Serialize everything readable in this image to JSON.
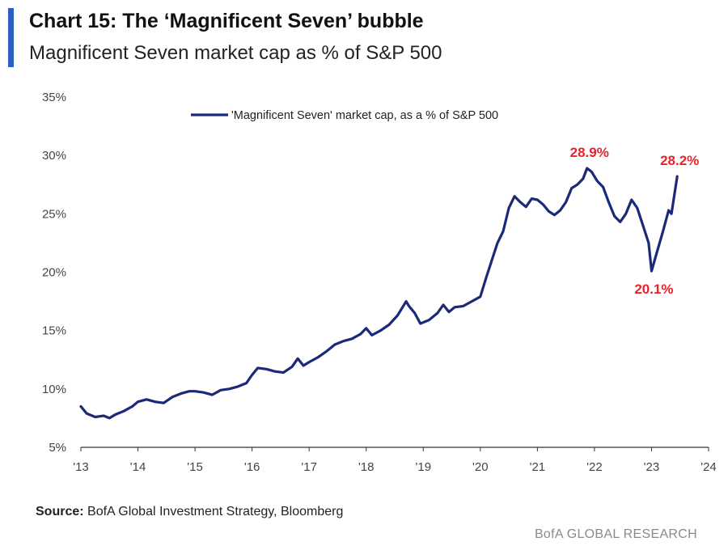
{
  "header": {
    "title": "Chart 15: The ‘Magnificent Seven’ bubble",
    "subtitle": "Magnificent Seven market cap as % of S&P 500",
    "accent_color": "#2d5fc2"
  },
  "footer": {
    "source_label": "Source:",
    "source_text": "BofA Global Investment Strategy, Bloomberg",
    "brand": "BofA GLOBAL RESEARCH"
  },
  "chart_data": {
    "type": "line",
    "x_range": [
      2013.0,
      2024.0
    ],
    "ylim": [
      5,
      35
    ],
    "y_ticks": [
      "5%",
      "10%",
      "15%",
      "20%",
      "25%",
      "30%",
      "35%"
    ],
    "x_ticks": [
      "'13",
      "'14",
      "'15",
      "'16",
      "'17",
      "'18",
      "'19",
      "'20",
      "'21",
      "'22",
      "'23",
      "'24"
    ],
    "grid": false,
    "legend_position": "top-center",
    "series": [
      {
        "name": "'Magnificent Seven' market cap, as a % of S&P 500",
        "color": "#1b2a78",
        "points": [
          [
            2013.0,
            8.5
          ],
          [
            2013.1,
            7.9
          ],
          [
            2013.25,
            7.6
          ],
          [
            2013.4,
            7.7
          ],
          [
            2013.5,
            7.5
          ],
          [
            2013.6,
            7.8
          ],
          [
            2013.75,
            8.1
          ],
          [
            2013.9,
            8.5
          ],
          [
            2014.0,
            8.9
          ],
          [
            2014.15,
            9.1
          ],
          [
            2014.3,
            8.9
          ],
          [
            2014.45,
            8.8
          ],
          [
            2014.6,
            9.3
          ],
          [
            2014.75,
            9.6
          ],
          [
            2014.9,
            9.8
          ],
          [
            2015.0,
            9.8
          ],
          [
            2015.15,
            9.7
          ],
          [
            2015.3,
            9.5
          ],
          [
            2015.45,
            9.9
          ],
          [
            2015.6,
            10.0
          ],
          [
            2015.75,
            10.2
          ],
          [
            2015.9,
            10.5
          ],
          [
            2016.0,
            11.2
          ],
          [
            2016.1,
            11.8
          ],
          [
            2016.25,
            11.7
          ],
          [
            2016.4,
            11.5
          ],
          [
            2016.55,
            11.4
          ],
          [
            2016.7,
            11.9
          ],
          [
            2016.8,
            12.6
          ],
          [
            2016.9,
            12.0
          ],
          [
            2017.0,
            12.3
          ],
          [
            2017.15,
            12.7
          ],
          [
            2017.3,
            13.2
          ],
          [
            2017.45,
            13.8
          ],
          [
            2017.6,
            14.1
          ],
          [
            2017.75,
            14.3
          ],
          [
            2017.9,
            14.7
          ],
          [
            2018.0,
            15.2
          ],
          [
            2018.1,
            14.6
          ],
          [
            2018.25,
            15.0
          ],
          [
            2018.4,
            15.5
          ],
          [
            2018.55,
            16.3
          ],
          [
            2018.7,
            17.5
          ],
          [
            2018.75,
            17.1
          ],
          [
            2018.85,
            16.5
          ],
          [
            2018.95,
            15.6
          ],
          [
            2019.1,
            15.9
          ],
          [
            2019.25,
            16.5
          ],
          [
            2019.35,
            17.2
          ],
          [
            2019.45,
            16.6
          ],
          [
            2019.55,
            17.0
          ],
          [
            2019.7,
            17.1
          ],
          [
            2019.85,
            17.5
          ],
          [
            2020.0,
            17.9
          ],
          [
            2020.1,
            19.5
          ],
          [
            2020.2,
            21.0
          ],
          [
            2020.3,
            22.5
          ],
          [
            2020.4,
            23.5
          ],
          [
            2020.5,
            25.5
          ],
          [
            2020.6,
            26.5
          ],
          [
            2020.7,
            26.0
          ],
          [
            2020.8,
            25.6
          ],
          [
            2020.9,
            26.3
          ],
          [
            2021.0,
            26.2
          ],
          [
            2021.1,
            25.8
          ],
          [
            2021.2,
            25.2
          ],
          [
            2021.3,
            24.9
          ],
          [
            2021.4,
            25.3
          ],
          [
            2021.5,
            26.0
          ],
          [
            2021.6,
            27.2
          ],
          [
            2021.7,
            27.5
          ],
          [
            2021.8,
            28.0
          ],
          [
            2021.87,
            28.9
          ],
          [
            2021.95,
            28.6
          ],
          [
            2022.05,
            27.8
          ],
          [
            2022.15,
            27.3
          ],
          [
            2022.25,
            26.0
          ],
          [
            2022.35,
            24.8
          ],
          [
            2022.45,
            24.3
          ],
          [
            2022.55,
            25.0
          ],
          [
            2022.65,
            26.2
          ],
          [
            2022.75,
            25.5
          ],
          [
            2022.85,
            24.0
          ],
          [
            2022.95,
            22.5
          ],
          [
            2023.0,
            20.1
          ],
          [
            2023.1,
            21.8
          ],
          [
            2023.2,
            23.5
          ],
          [
            2023.3,
            25.3
          ],
          [
            2023.35,
            25.0
          ],
          [
            2023.45,
            28.2
          ]
        ]
      }
    ],
    "annotations": [
      {
        "text": "28.9%",
        "x": 2021.87,
        "y": 28.9,
        "placement": "above"
      },
      {
        "text": "28.2%",
        "x": 2023.45,
        "y": 28.2,
        "placement": "above"
      },
      {
        "text": "20.1%",
        "x": 2023.0,
        "y": 20.1,
        "placement": "below"
      }
    ],
    "annotation_color": "#e8232a",
    "axis_color": "#333333"
  }
}
